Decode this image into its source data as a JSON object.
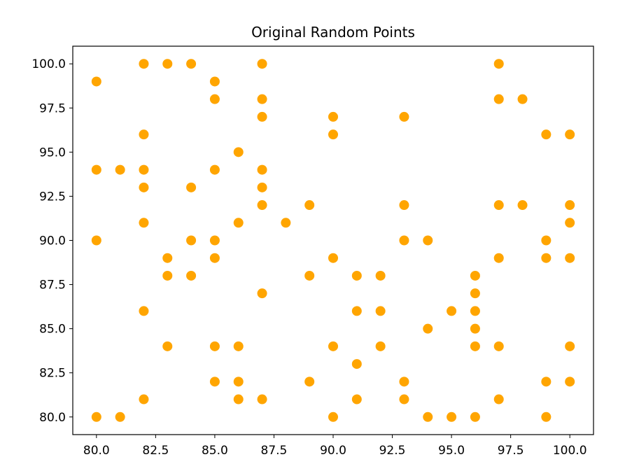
{
  "chart_data": {
    "type": "scatter",
    "title": "Original Random Points",
    "xlabel": "",
    "ylabel": "",
    "xlim": [
      79,
      101
    ],
    "ylim": [
      79,
      101
    ],
    "xticks": [
      "80.0",
      "82.5",
      "85.0",
      "87.5",
      "90.0",
      "92.5",
      "95.0",
      "97.5",
      "100.0"
    ],
    "yticks": [
      "80.0",
      "82.5",
      "85.0",
      "87.5",
      "90.0",
      "92.5",
      "95.0",
      "97.5",
      "100.0"
    ],
    "grid": false,
    "marker_color": "#ffa500",
    "points": [
      [
        80,
        99
      ],
      [
        80,
        94
      ],
      [
        80,
        90
      ],
      [
        80,
        80
      ],
      [
        81,
        94
      ],
      [
        81,
        80
      ],
      [
        82,
        100
      ],
      [
        82,
        96
      ],
      [
        82,
        94
      ],
      [
        82,
        93
      ],
      [
        82,
        91
      ],
      [
        82,
        86
      ],
      [
        82,
        81
      ],
      [
        83,
        100
      ],
      [
        83,
        89
      ],
      [
        83,
        88
      ],
      [
        83,
        84
      ],
      [
        84,
        100
      ],
      [
        84,
        93
      ],
      [
        84,
        90
      ],
      [
        84,
        88
      ],
      [
        85,
        99
      ],
      [
        85,
        98
      ],
      [
        85,
        94
      ],
      [
        85,
        90
      ],
      [
        85,
        89
      ],
      [
        85,
        84
      ],
      [
        85,
        82
      ],
      [
        86,
        95
      ],
      [
        86,
        91
      ],
      [
        86,
        84
      ],
      [
        86,
        82
      ],
      [
        86,
        81
      ],
      [
        87,
        100
      ],
      [
        87,
        98
      ],
      [
        87,
        97
      ],
      [
        87,
        94
      ],
      [
        87,
        93
      ],
      [
        87,
        92
      ],
      [
        87,
        87
      ],
      [
        87,
        81
      ],
      [
        88,
        91
      ],
      [
        89,
        92
      ],
      [
        89,
        88
      ],
      [
        89,
        82
      ],
      [
        90,
        97
      ],
      [
        90,
        96
      ],
      [
        90,
        89
      ],
      [
        90,
        84
      ],
      [
        90,
        80
      ],
      [
        91,
        88
      ],
      [
        91,
        86
      ],
      [
        91,
        83
      ],
      [
        91,
        81
      ],
      [
        92,
        88
      ],
      [
        92,
        86
      ],
      [
        92,
        84
      ],
      [
        93,
        97
      ],
      [
        93,
        92
      ],
      [
        93,
        90
      ],
      [
        93,
        82
      ],
      [
        93,
        81
      ],
      [
        94,
        90
      ],
      [
        94,
        85
      ],
      [
        94,
        80
      ],
      [
        95,
        86
      ],
      [
        95,
        80
      ],
      [
        96,
        88
      ],
      [
        96,
        87
      ],
      [
        96,
        86
      ],
      [
        96,
        85
      ],
      [
        96,
        84
      ],
      [
        96,
        80
      ],
      [
        97,
        100
      ],
      [
        97,
        98
      ],
      [
        97,
        92
      ],
      [
        97,
        89
      ],
      [
        97,
        84
      ],
      [
        97,
        81
      ],
      [
        98,
        98
      ],
      [
        98,
        92
      ],
      [
        99,
        96
      ],
      [
        99,
        90
      ],
      [
        99,
        89
      ],
      [
        99,
        82
      ],
      [
        99,
        80
      ],
      [
        100,
        96
      ],
      [
        100,
        92
      ],
      [
        100,
        91
      ],
      [
        100,
        89
      ],
      [
        100,
        84
      ],
      [
        100,
        82
      ]
    ]
  }
}
